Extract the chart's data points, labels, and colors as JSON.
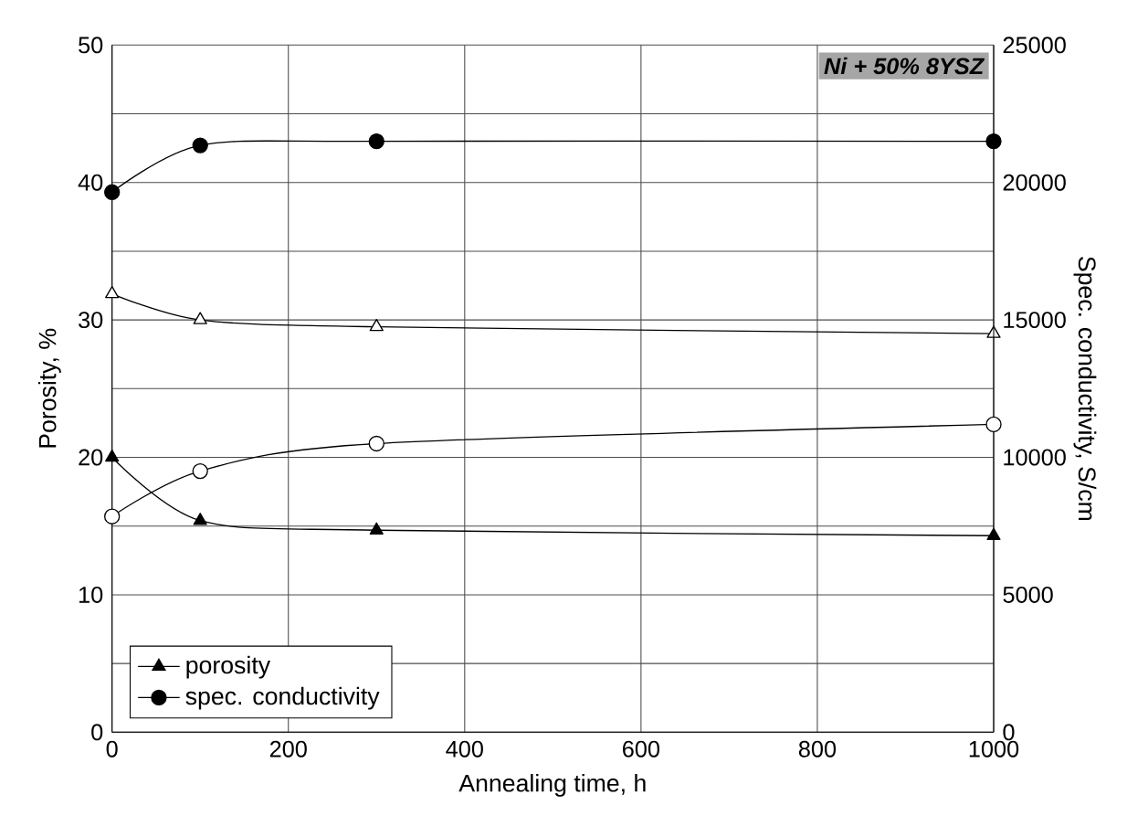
{
  "chart_data": {
    "type": "line",
    "xlabel": "Annealing time, h",
    "ylabel": "Porosity, %",
    "y2label": "Spec. conductivity, S/cm",
    "x": [
      0,
      100,
      300,
      1000
    ],
    "series": [
      {
        "name": "porosity",
        "color": "#000000",
        "values": [
          20.0,
          15.4,
          14.7,
          14.3
        ],
        "marker": "triangle"
      },
      {
        "color": "#ffffff",
        "values": [
          31.9,
          30.0,
          29.5,
          29.0
        ],
        "marker": "triangle"
      },
      {
        "name": "spec. conductivity",
        "color": "#000000",
        "values": [
          19650,
          21350,
          21500,
          21500
        ],
        "marker": "circle",
        "axis": "y2"
      },
      {
        "color": "#ffffff",
        "values": [
          7850,
          9500,
          10500,
          11200
        ],
        "marker": "circle",
        "axis": "y2"
      }
    ],
    "xlim": [
      0,
      1000
    ],
    "xticks": [
      0,
      200,
      400,
      600,
      800,
      1000
    ],
    "ylim": [
      0,
      50
    ],
    "yticks": [
      0,
      {
        "value": 5,
        "label": null
      },
      10,
      {
        "value": 15,
        "label": null
      },
      20,
      {
        "value": 25,
        "label": null
      },
      30,
      {
        "value": 35,
        "label": null
      },
      40,
      {
        "value": 45,
        "label": null
      },
      50
    ],
    "y2lim": [
      0,
      25000
    ],
    "y2ticks": [
      0,
      5000,
      10000,
      15000,
      20000,
      25000
    ],
    "grid": true,
    "legend": "bottom left",
    "annotations": [
      "Ni + 50% 8YSZ"
    ]
  }
}
